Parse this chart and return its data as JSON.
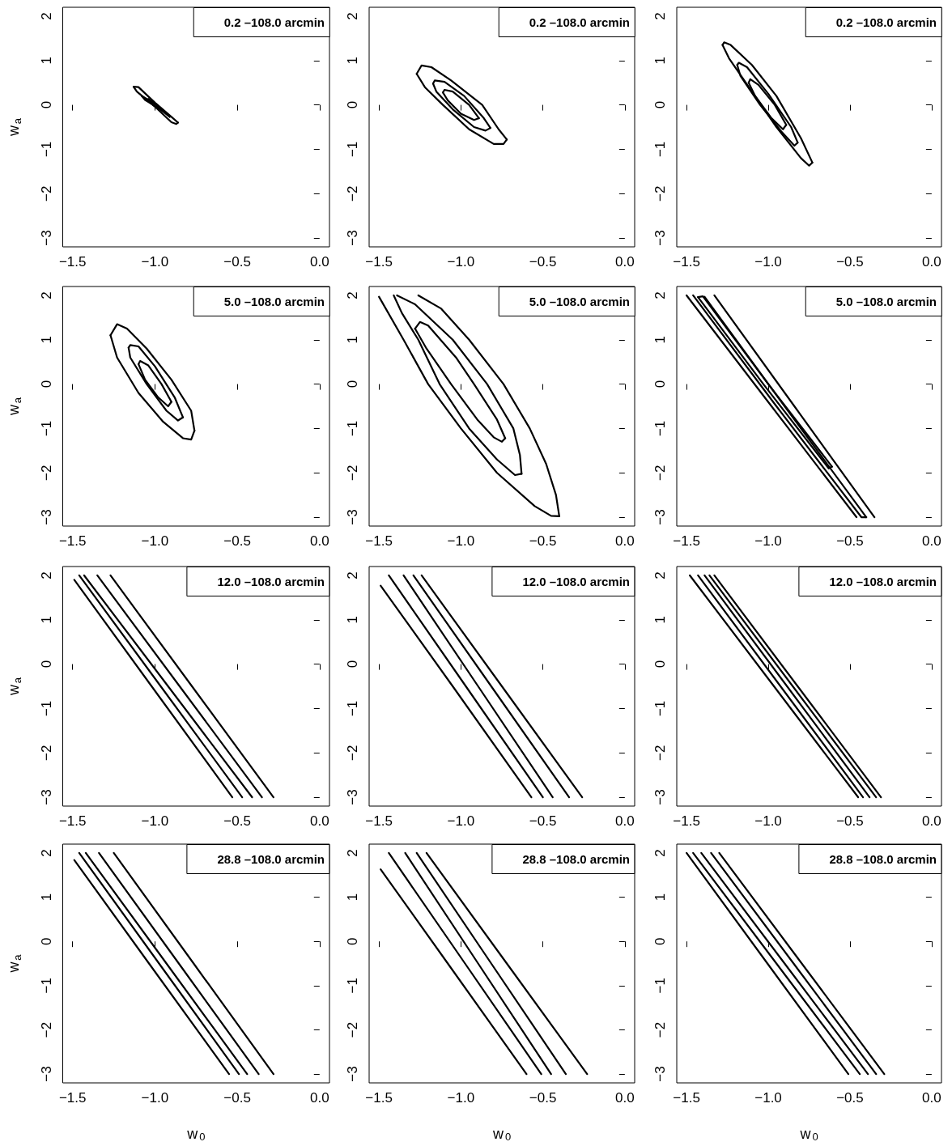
{
  "chart_data": [
    {
      "type": "line",
      "annotations": [
        "0.2 –108.0 arcmin"
      ],
      "ylabel": "w$_{a}$",
      "xlim": [
        -1.56,
        0.06
      ],
      "ylim": [
        -3.2,
        2.2
      ],
      "xticks": [
        {
          "value": -1.5,
          "label": "−1.5"
        },
        {
          "value": -1,
          "label": "−1.0"
        },
        {
          "value": -0.5,
          "label": "−0.5"
        },
        {
          "value": 0,
          "label": "0.0"
        }
      ],
      "yticks": [
        {
          "value": -3,
          "label": "−3"
        },
        {
          "value": -2,
          "label": "−2"
        },
        {
          "value": -1,
          "label": "−1"
        },
        0,
        1,
        2
      ],
      "series": [
        {
          "color": "#000000",
          "x": [
            -1.13,
            -1.1,
            -1.0,
            -0.9,
            -0.86
          ],
          "values": [
            0.41,
            0.4,
            0.05,
            -0.27,
            -0.4
          ]
        },
        {
          "color": "#000000",
          "x": [
            -1.13,
            -1.11,
            -1.0,
            -0.9,
            -0.87,
            -0.86
          ],
          "values": [
            0.41,
            0.3,
            -0.04,
            -0.39,
            -0.43,
            -0.4
          ]
        },
        {
          "color": "#000000",
          "x": [
            -1.08,
            -1.0,
            -0.92,
            -0.91
          ],
          "values": [
            0.2,
            0.03,
            -0.22,
            -0.27
          ]
        },
        {
          "color": "#000000",
          "x": [
            -1.08,
            -1.06,
            -0.98,
            -0.91
          ],
          "values": [
            0.2,
            0.11,
            -0.07,
            -0.27
          ]
        },
        {
          "color": "#000000",
          "x": [
            -1.04,
            -0.97,
            -0.95
          ],
          "values": [
            0.13,
            -0.06,
            -0.14
          ]
        },
        {
          "color": "#000000",
          "x": [
            -1.04,
            -1.01,
            -0.95
          ],
          "values": [
            0.13,
            0.0,
            -0.14
          ]
        }
      ]
    },
    {
      "type": "line",
      "annotations": [
        "0.2 –108.0 arcmin"
      ],
      "xlim": [
        -1.56,
        0.06
      ],
      "ylim": [
        -3.2,
        2.2
      ],
      "xticks": [
        {
          "value": -1.5,
          "label": "−1.5"
        },
        {
          "value": -1,
          "label": "−1.0"
        },
        {
          "value": -0.5,
          "label": "−0.5"
        },
        {
          "value": 0,
          "label": "0.0"
        }
      ],
      "yticks": [
        {
          "value": -3,
          "label": "−3"
        },
        {
          "value": -2,
          "label": "−2"
        },
        {
          "value": -1,
          "label": "−1"
        },
        0,
        1,
        2
      ],
      "series": [
        {
          "color": "#000000",
          "x": [
            -1.27,
            -1.24,
            -1.18,
            -1.06,
            -0.87,
            -0.77,
            -0.72
          ],
          "values": [
            0.7,
            0.89,
            0.85,
            0.55,
            0.0,
            -0.55,
            -0.78
          ]
        },
        {
          "color": "#000000",
          "x": [
            -1.27,
            -1.22,
            -1.11,
            -0.95,
            -0.8,
            -0.74,
            -0.72
          ],
          "values": [
            0.7,
            0.4,
            0.0,
            -0.55,
            -0.88,
            -0.88,
            -0.78
          ]
        },
        {
          "color": "#000000",
          "x": [
            -1.17,
            -1.16,
            -1.1,
            -0.98,
            -0.86,
            -0.82
          ],
          "values": [
            0.48,
            0.55,
            0.52,
            0.2,
            -0.3,
            -0.52
          ]
        },
        {
          "color": "#000000",
          "x": [
            -1.17,
            -1.15,
            -1.05,
            -0.92,
            -0.85,
            -0.82
          ],
          "values": [
            0.48,
            0.3,
            -0.1,
            -0.5,
            -0.58,
            -0.52
          ]
        },
        {
          "color": "#000000",
          "x": [
            -1.11,
            -1.1,
            -1.05,
            -0.95,
            -0.89
          ],
          "values": [
            0.28,
            0.34,
            0.3,
            0.0,
            -0.3
          ]
        },
        {
          "color": "#000000",
          "x": [
            -1.11,
            -1.08,
            -1.0,
            -0.92,
            -0.89
          ],
          "values": [
            0.28,
            0.1,
            -0.2,
            -0.34,
            -0.3
          ]
        }
      ]
    },
    {
      "type": "line",
      "annotations": [
        "0.2 –108.0 arcmin"
      ],
      "xlim": [
        -1.56,
        0.06
      ],
      "ylim": [
        -3.2,
        2.2
      ],
      "xticks": [
        {
          "value": -1.5,
          "label": "−1.5"
        },
        {
          "value": -1,
          "label": "−1.0"
        },
        {
          "value": -0.5,
          "label": "−0.5"
        },
        {
          "value": 0,
          "label": "0.0"
        }
      ],
      "yticks": [
        {
          "value": -3,
          "label": "−3"
        },
        {
          "value": -2,
          "label": "−2"
        },
        {
          "value": -1,
          "label": "−1"
        },
        0,
        1,
        2
      ],
      "series": [
        {
          "color": "#000000",
          "x": [
            -1.28,
            -1.27,
            -1.23,
            -1.1,
            -0.95,
            -0.8,
            -0.73
          ],
          "values": [
            1.35,
            1.41,
            1.35,
            0.9,
            0.2,
            -0.75,
            -1.3
          ]
        },
        {
          "color": "#000000",
          "x": [
            -1.28,
            -1.24,
            -1.1,
            -0.95,
            -0.8,
            -0.75,
            -0.73
          ],
          "values": [
            1.35,
            1.05,
            0.3,
            -0.5,
            -1.2,
            -1.37,
            -1.3
          ]
        },
        {
          "color": "#000000",
          "x": [
            -1.19,
            -1.18,
            -1.13,
            -1.0,
            -0.86,
            -0.82
          ],
          "values": [
            0.9,
            0.95,
            0.85,
            0.25,
            -0.5,
            -0.85
          ]
        },
        {
          "color": "#000000",
          "x": [
            -1.19,
            -1.17,
            -1.05,
            -0.92,
            -0.84,
            -0.82
          ],
          "values": [
            0.9,
            0.65,
            0.0,
            -0.6,
            -0.92,
            -0.85
          ]
        },
        {
          "color": "#000000",
          "x": [
            -1.12,
            -1.11,
            -1.06,
            -0.96,
            -0.89
          ],
          "values": [
            0.5,
            0.58,
            0.45,
            0.0,
            -0.45
          ]
        },
        {
          "color": "#000000",
          "x": [
            -1.12,
            -1.08,
            -0.98,
            -0.91,
            -0.89
          ],
          "values": [
            0.5,
            0.2,
            -0.3,
            -0.55,
            -0.45
          ]
        }
      ]
    },
    {
      "type": "line",
      "annotations": [
        "5.0 –108.0 arcmin"
      ],
      "ylabel": "w$_{a}$",
      "xlim": [
        -1.56,
        0.06
      ],
      "ylim": [
        -3.2,
        2.2
      ],
      "xticks": [
        {
          "value": -1.5,
          "label": "−1.5"
        },
        {
          "value": -1,
          "label": "−1.0"
        },
        {
          "value": -0.5,
          "label": "−0.5"
        },
        {
          "value": 0,
          "label": "0.0"
        }
      ],
      "yticks": [
        {
          "value": -3,
          "label": "−3"
        },
        {
          "value": -2,
          "label": "−2"
        },
        {
          "value": -1,
          "label": "−1"
        },
        0,
        1,
        2
      ],
      "series": [
        {
          "color": "#000000",
          "x": [
            -1.27,
            -1.23,
            -1.17,
            -1.05,
            -0.9,
            -0.78,
            -0.76
          ],
          "values": [
            1.1,
            1.35,
            1.25,
            0.8,
            0.1,
            -0.6,
            -1.05
          ]
        },
        {
          "color": "#000000",
          "x": [
            -1.27,
            -1.23,
            -1.1,
            -0.95,
            -0.83,
            -0.78,
            -0.76
          ],
          "values": [
            1.1,
            0.6,
            -0.2,
            -0.85,
            -1.22,
            -1.25,
            -1.05
          ]
        },
        {
          "color": "#000000",
          "x": [
            -1.16,
            -1.15,
            -1.1,
            -1.0,
            -0.88,
            -0.83
          ],
          "values": [
            0.82,
            0.88,
            0.85,
            0.4,
            -0.3,
            -0.75
          ]
        },
        {
          "color": "#000000",
          "x": [
            -1.16,
            -1.15,
            -1.05,
            -0.93,
            -0.86,
            -0.83
          ],
          "values": [
            0.82,
            0.6,
            0.0,
            -0.6,
            -0.82,
            -0.75
          ]
        },
        {
          "color": "#000000",
          "x": [
            -1.1,
            -1.09,
            -1.04,
            -0.96,
            -0.9
          ],
          "values": [
            0.45,
            0.52,
            0.42,
            0.0,
            -0.4
          ]
        },
        {
          "color": "#000000",
          "x": [
            -1.1,
            -1.06,
            -0.98,
            -0.92,
            -0.9
          ],
          "values": [
            0.45,
            0.1,
            -0.3,
            -0.5,
            -0.4
          ]
        }
      ]
    },
    {
      "type": "line",
      "annotations": [
        "5.0 –108.0 arcmin"
      ],
      "xlim": [
        -1.56,
        0.06
      ],
      "ylim": [
        -3.2,
        2.2
      ],
      "xticks": [
        {
          "value": -1.5,
          "label": "−1.5"
        },
        {
          "value": -1,
          "label": "−1.0"
        },
        {
          "value": -0.5,
          "label": "−0.5"
        },
        {
          "value": 0,
          "label": "0.0"
        }
      ],
      "yticks": [
        {
          "value": -3,
          "label": "−3"
        },
        {
          "value": -2,
          "label": "−2"
        },
        {
          "value": -1,
          "label": "−1"
        },
        0,
        1,
        2
      ],
      "series": [
        {
          "color": "#000000",
          "x": [
            -1.5,
            -1.35,
            -1.2,
            -1.0,
            -0.78,
            -0.55,
            -0.45,
            -0.4
          ],
          "values": [
            1.97,
            1.0,
            0.0,
            -1.0,
            -2.0,
            -2.75,
            -2.97,
            -2.98
          ]
        },
        {
          "color": "#000000",
          "x": [
            -1.26,
            -1.12,
            -0.95,
            -0.74,
            -0.58,
            -0.48,
            -0.42,
            -0.4
          ],
          "values": [
            2.0,
            1.7,
            1.0,
            0.0,
            -1.0,
            -1.8,
            -2.5,
            -2.98
          ]
        },
        {
          "color": "#000000",
          "x": [
            -1.41,
            -1.36,
            -1.26,
            -1.13,
            -0.95,
            -0.78,
            -0.67,
            -0.63
          ],
          "values": [
            2.0,
            1.6,
            1.0,
            0.0,
            -1.0,
            -1.7,
            -2.05,
            -2.02
          ]
        },
        {
          "color": "#000000",
          "x": [
            -1.39,
            -1.28,
            -1.05,
            -0.84,
            -0.68,
            -0.64,
            -0.63
          ],
          "values": [
            2.0,
            1.8,
            1.0,
            0.0,
            -1.0,
            -1.6,
            -2.02
          ]
        },
        {
          "color": "#000000",
          "x": [
            -1.28,
            -1.25,
            -1.2,
            -1.03,
            -0.92,
            -0.78,
            -0.73
          ],
          "values": [
            1.25,
            1.4,
            1.32,
            0.6,
            0.0,
            -0.8,
            -1.22
          ]
        },
        {
          "color": "#000000",
          "x": [
            -1.28,
            -1.21,
            -1.06,
            -0.9,
            -0.8,
            -0.75,
            -0.73
          ],
          "values": [
            1.25,
            0.8,
            0.0,
            -0.8,
            -1.2,
            -1.3,
            -1.22
          ]
        }
      ]
    },
    {
      "type": "line",
      "annotations": [
        "5.0 –108.0 arcmin"
      ],
      "xlim": [
        -1.56,
        0.06
      ],
      "ylim": [
        -3.2,
        2.2
      ],
      "xticks": [
        {
          "value": -1.5,
          "label": "−1.5"
        },
        {
          "value": -1,
          "label": "−1.0"
        },
        {
          "value": -0.5,
          "label": "−0.5"
        },
        {
          "value": 0,
          "label": "0.0"
        }
      ],
      "yticks": [
        {
          "value": -3,
          "label": "−3"
        },
        {
          "value": -2,
          "label": "−2"
        },
        {
          "value": -1,
          "label": "−1"
        },
        0,
        1,
        2
      ],
      "series": [
        {
          "color": "#000000",
          "x": [
            -1.5,
            -0.98,
            -0.46
          ],
          "values": [
            2.0,
            -0.5,
            -3.0
          ]
        },
        {
          "color": "#000000",
          "x": [
            -1.33,
            -0.84,
            -0.35
          ],
          "values": [
            2.0,
            -0.5,
            -3.0
          ]
        },
        {
          "color": "#000000",
          "x": [
            -1.46,
            -0.95,
            -0.43,
            -0.4
          ],
          "values": [
            2.0,
            -0.5,
            -3.0,
            -3.0
          ]
        },
        {
          "color": "#000000",
          "x": [
            -1.39,
            -0.9,
            -0.4
          ],
          "values": [
            1.97,
            -0.5,
            -3.0
          ]
        },
        {
          "color": "#000000",
          "x": [
            -1.43,
            -1.03,
            -0.63,
            -0.61
          ],
          "values": [
            1.96,
            0.0,
            -1.9,
            -1.86
          ]
        },
        {
          "color": "#000000",
          "x": [
            -1.43,
            -1.4,
            -1.0,
            -0.61
          ],
          "values": [
            1.96,
            1.98,
            0.0,
            -1.86
          ]
        }
      ]
    },
    {
      "type": "line",
      "annotations": [
        "12.0 –108.0 arcmin"
      ],
      "ylabel": "w$_{a}$",
      "xlim": [
        -1.56,
        0.06
      ],
      "ylim": [
        -3.2,
        2.2
      ],
      "xticks": [
        {
          "value": -1.5,
          "label": "−1.5"
        },
        {
          "value": -1,
          "label": "−1.0"
        },
        {
          "value": -0.5,
          "label": "−0.5"
        },
        {
          "value": 0,
          "label": "0.0"
        }
      ],
      "yticks": [
        {
          "value": -3,
          "label": "−3"
        },
        {
          "value": -2,
          "label": "−2"
        },
        {
          "value": -1,
          "label": "−1"
        },
        0,
        1,
        2
      ],
      "series": [
        {
          "color": "#000000",
          "x": [
            -1.49,
            -1.02,
            -0.53
          ],
          "values": [
            1.9,
            -0.5,
            -3.0
          ]
        },
        {
          "color": "#000000",
          "x": [
            -1.46,
            -0.965,
            -0.47
          ],
          "values": [
            2.0,
            -0.5,
            -3.0
          ]
        },
        {
          "color": "#000000",
          "x": [
            -1.43,
            -0.92,
            -0.41
          ],
          "values": [
            2.0,
            -0.5,
            -3.0
          ]
        },
        {
          "color": "#000000",
          "x": [
            -1.35,
            -0.85,
            -0.35
          ],
          "values": [
            2.0,
            -0.5,
            -3.0
          ]
        },
        {
          "color": "#000000",
          "x": [
            -1.27,
            -0.775,
            -0.28
          ],
          "values": [
            2.0,
            -0.5,
            -3.0
          ]
        }
      ]
    },
    {
      "type": "line",
      "annotations": [
        "12.0 –108.0 arcmin"
      ],
      "xlim": [
        -1.56,
        0.06
      ],
      "ylim": [
        -3.2,
        2.2
      ],
      "xticks": [
        {
          "value": -1.5,
          "label": "−1.5"
        },
        {
          "value": -1,
          "label": "−1.0"
        },
        {
          "value": -0.5,
          "label": "−0.5"
        },
        {
          "value": 0,
          "label": "0.0"
        }
      ],
      "yticks": [
        {
          "value": -3,
          "label": "−3"
        },
        {
          "value": -2,
          "label": "−2"
        },
        {
          "value": -1,
          "label": "−1"
        },
        0,
        1,
        2
      ],
      "series": [
        {
          "color": "#000000",
          "x": [
            -1.49,
            -1.05,
            -0.57
          ],
          "values": [
            1.77,
            -0.5,
            -3.0
          ]
        },
        {
          "color": "#000000",
          "x": [
            -1.44,
            -0.97,
            -0.5
          ],
          "values": [
            2.0,
            -0.5,
            -3.0
          ]
        },
        {
          "color": "#000000",
          "x": [
            -1.35,
            -0.895,
            -0.44
          ],
          "values": [
            2.0,
            -0.5,
            -3.0
          ]
        },
        {
          "color": "#000000",
          "x": [
            -1.29,
            -0.815,
            -0.34
          ],
          "values": [
            2.0,
            -0.5,
            -3.0
          ]
        },
        {
          "color": "#000000",
          "x": [
            -1.24,
            -0.75,
            -0.26
          ],
          "values": [
            2.0,
            -0.5,
            -3.0
          ]
        }
      ]
    },
    {
      "type": "line",
      "annotations": [
        "12.0 –108.0 arcmin"
      ],
      "xlim": [
        -1.56,
        0.06
      ],
      "ylim": [
        -3.2,
        2.2
      ],
      "xticks": [
        {
          "value": -1.5,
          "label": "−1.5"
        },
        {
          "value": -1,
          "label": "−1.0"
        },
        {
          "value": -0.5,
          "label": "−0.5"
        },
        {
          "value": 0,
          "label": "0.0"
        }
      ],
      "yticks": [
        {
          "value": -3,
          "label": "−3"
        },
        {
          "value": -2,
          "label": "−2"
        },
        {
          "value": -1,
          "label": "−1"
        },
        0,
        1,
        2
      ],
      "series": [
        {
          "color": "#000000",
          "x": [
            -1.48,
            -0.965,
            -0.45
          ],
          "values": [
            2.0,
            -0.5,
            -3.0
          ]
        },
        {
          "color": "#000000",
          "x": [
            -1.43,
            -0.925,
            -0.42
          ],
          "values": [
            2.0,
            -0.5,
            -3.0
          ]
        },
        {
          "color": "#000000",
          "x": [
            -1.39,
            -0.885,
            -0.38
          ],
          "values": [
            2.0,
            -0.5,
            -3.0
          ]
        },
        {
          "color": "#000000",
          "x": [
            -1.36,
            -0.85,
            -0.34
          ],
          "values": [
            2.0,
            -0.5,
            -3.0
          ]
        },
        {
          "color": "#000000",
          "x": [
            -1.33,
            -0.82,
            -0.31
          ],
          "values": [
            2.0,
            -0.5,
            -3.0
          ]
        }
      ]
    },
    {
      "type": "line",
      "annotations": [
        "28.8 –108.0 arcmin"
      ],
      "ylabel": "w$_{a}$",
      "xlabel": "w$_{0}$",
      "xlim": [
        -1.56,
        0.06
      ],
      "ylim": [
        -3.2,
        2.2
      ],
      "xticks": [
        {
          "value": -1.5,
          "label": "−1.5"
        },
        {
          "value": -1,
          "label": "−1.0"
        },
        {
          "value": -0.5,
          "label": "−0.5"
        },
        {
          "value": 0,
          "label": "0.0"
        }
      ],
      "yticks": [
        {
          "value": -3,
          "label": "−3"
        },
        {
          "value": -2,
          "label": "−2"
        },
        {
          "value": -1,
          "label": "−1"
        },
        0,
        1,
        2
      ],
      "series": [
        {
          "color": "#000000",
          "x": [
            -1.49,
            -1.036,
            -0.55
          ],
          "values": [
            1.84,
            -0.5,
            -3.0
          ]
        },
        {
          "color": "#000000",
          "x": [
            -1.46,
            -0.975,
            -0.49
          ],
          "values": [
            2.0,
            -0.5,
            -3.0
          ]
        },
        {
          "color": "#000000",
          "x": [
            -1.42,
            -0.93,
            -0.44
          ],
          "values": [
            2.0,
            -0.5,
            -3.0
          ]
        },
        {
          "color": "#000000",
          "x": [
            -1.34,
            -0.855,
            -0.37
          ],
          "values": [
            2.0,
            -0.5,
            -3.0
          ]
        },
        {
          "color": "#000000",
          "x": [
            -1.25,
            -0.765,
            -0.28
          ],
          "values": [
            2.0,
            -0.5,
            -3.0
          ]
        }
      ]
    },
    {
      "type": "line",
      "annotations": [
        "28.8 –108.0 arcmin"
      ],
      "xlabel": "w$_{0}$",
      "xlim": [
        -1.56,
        0.06
      ],
      "ylim": [
        -3.2,
        2.2
      ],
      "xticks": [
        {
          "value": -1.5,
          "label": "−1.5"
        },
        {
          "value": -1,
          "label": "−1.0"
        },
        {
          "value": -0.5,
          "label": "−0.5"
        },
        {
          "value": 0,
          "label": "0.0"
        }
      ],
      "yticks": [
        {
          "value": -3,
          "label": "−3"
        },
        {
          "value": -2,
          "label": "−2"
        },
        {
          "value": -1,
          "label": "−1"
        },
        0,
        1,
        2
      ],
      "series": [
        {
          "color": "#000000",
          "x": [
            -1.49,
            -1.08,
            -0.6
          ],
          "values": [
            1.63,
            -0.5,
            -3.0
          ]
        },
        {
          "color": "#000000",
          "x": [
            -1.44,
            -0.975,
            -0.51
          ],
          "values": [
            2.0,
            -0.5,
            -3.0
          ]
        },
        {
          "color": "#000000",
          "x": [
            -1.34,
            -0.895,
            -0.45
          ],
          "values": [
            2.0,
            -0.5,
            -3.0
          ]
        },
        {
          "color": "#000000",
          "x": [
            -1.27,
            -0.815,
            -0.36
          ],
          "values": [
            2.0,
            -0.5,
            -3.0
          ]
        },
        {
          "color": "#000000",
          "x": [
            -1.21,
            -0.72,
            -0.23
          ],
          "values": [
            2.0,
            -0.5,
            -3.0
          ]
        }
      ]
    },
    {
      "type": "line",
      "annotations": [
        "28.8 –108.0 arcmin"
      ],
      "xlabel": "w$_{0}$",
      "xlim": [
        -1.56,
        0.06
      ],
      "ylim": [
        -3.2,
        2.2
      ],
      "xticks": [
        {
          "value": -1.5,
          "label": "−1.5"
        },
        {
          "value": -1,
          "label": "−1.0"
        },
        {
          "value": -0.5,
          "label": "−0.5"
        },
        {
          "value": 0,
          "label": "0.0"
        }
      ],
      "yticks": [
        {
          "value": -3,
          "label": "−3"
        },
        {
          "value": -2,
          "label": "−2"
        },
        {
          "value": -1,
          "label": "−1"
        },
        0,
        1,
        2
      ],
      "series": [
        {
          "color": "#000000",
          "x": [
            -1.5,
            -1.005,
            -0.51
          ],
          "values": [
            2.0,
            -0.5,
            -3.0
          ]
        },
        {
          "color": "#000000",
          "x": [
            -1.46,
            -0.95,
            -0.44
          ],
          "values": [
            2.0,
            -0.5,
            -3.0
          ]
        },
        {
          "color": "#000000",
          "x": [
            -1.41,
            -0.9,
            -0.39
          ],
          "values": [
            2.0,
            -0.5,
            -3.0
          ]
        },
        {
          "color": "#000000",
          "x": [
            -1.35,
            -0.845,
            -0.34
          ],
          "values": [
            2.0,
            -0.5,
            -3.0
          ]
        },
        {
          "color": "#000000",
          "x": [
            -1.3,
            -0.795,
            -0.29
          ],
          "values": [
            2.0,
            -0.5,
            -3.0
          ]
        }
      ]
    }
  ]
}
